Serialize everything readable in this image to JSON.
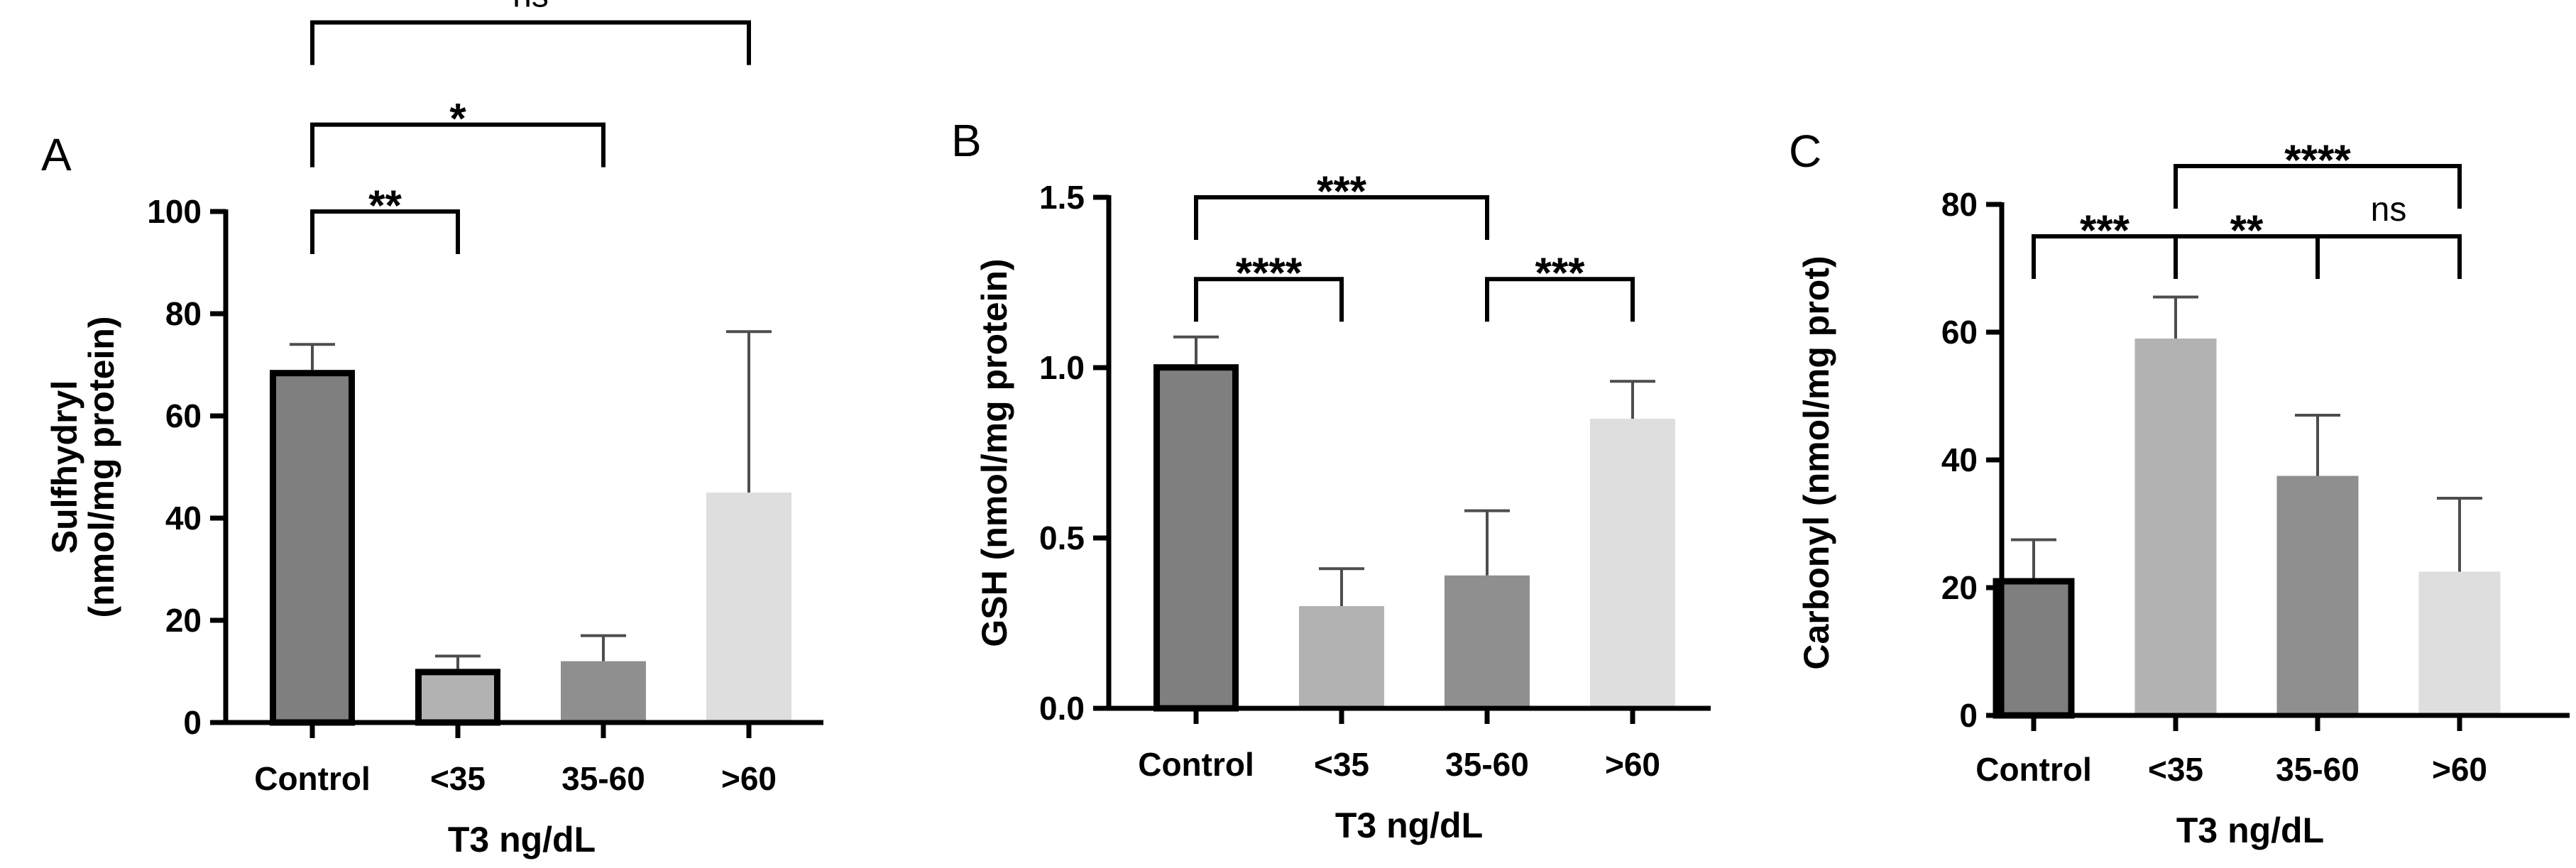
{
  "chart_data": [
    {
      "type": "bar",
      "panel": "A",
      "categories": [
        "Control",
        "<35",
        "35-60",
        ">60"
      ],
      "values": [
        69,
        10.5,
        12,
        45
      ],
      "errors": [
        5,
        2.5,
        5,
        31.5
      ],
      "colors": [
        "#7f7f7f",
        "#b2b2b2",
        "#8f8f8f",
        "#dedede"
      ],
      "outlined": [
        true,
        true,
        false,
        false
      ],
      "ylabel_lines": [
        "Sulfhydryl",
        "(nmol/mg protein)"
      ],
      "xlabel": "T3 ng/dL",
      "ylim": [
        0,
        100
      ],
      "yticks": [
        0,
        20,
        40,
        60,
        80,
        100
      ],
      "ytick_labels": [
        "0",
        "20",
        "40",
        "60",
        "80",
        "100"
      ],
      "significance": [
        {
          "from": 0,
          "to": 1,
          "label": "**",
          "level": 100
        },
        {
          "from": 0,
          "to": 2,
          "label": "*",
          "level": 117
        },
        {
          "from": 0,
          "to": 3,
          "label": "ns",
          "level": 137
        }
      ]
    },
    {
      "type": "bar",
      "panel": "B",
      "categories": [
        "Control",
        "<35",
        "35-60",
        ">60"
      ],
      "values": [
        1.01,
        0.3,
        0.39,
        0.85
      ],
      "errors": [
        0.08,
        0.11,
        0.19,
        0.11
      ],
      "colors": [
        "#7f7f7f",
        "#b2b2b2",
        "#8f8f8f",
        "#dedede"
      ],
      "outlined": [
        true,
        false,
        false,
        false
      ],
      "ylabel_lines": [
        "GSH (nmol/mg protein)"
      ],
      "xlabel": "T3 ng/dL",
      "ylim": [
        0,
        1.5
      ],
      "yticks": [
        0,
        0.5,
        1.0,
        1.5
      ],
      "ytick_labels": [
        "0.0",
        "0.5",
        "1.0",
        "1.5"
      ],
      "significance": [
        {
          "from": 0,
          "to": 1,
          "label": "****",
          "level": 1.26
        },
        {
          "from": 2,
          "to": 3,
          "label": "***",
          "level": 1.26
        },
        {
          "from": 0,
          "to": 2,
          "label": "***",
          "level": 1.5
        }
      ]
    },
    {
      "type": "bar",
      "panel": "C",
      "categories": [
        "Control",
        "<35",
        "35-60",
        ">60"
      ],
      "values": [
        21.5,
        59,
        37.5,
        22.5
      ],
      "errors": [
        6,
        6.5,
        9.5,
        11.5
      ],
      "colors": [
        "#7f7f7f",
        "#b2b2b2",
        "#8f8f8f",
        "#dedede"
      ],
      "outlined": [
        true,
        false,
        false,
        false
      ],
      "ylabel_lines": [
        "Carbonyl (nmol/mg prot)"
      ],
      "xlabel": "T3 ng/dL",
      "ylim": [
        0,
        80
      ],
      "yticks": [
        0,
        20,
        40,
        60,
        80
      ],
      "ytick_labels": [
        "0",
        "20",
        "40",
        "60",
        "80"
      ],
      "significance": [
        {
          "from": 0,
          "to": 1,
          "label": "***",
          "level": 75
        },
        {
          "from": 1,
          "to": 2,
          "label": "**",
          "level": 75
        },
        {
          "from": 2,
          "to": 3,
          "label": "ns",
          "level": 75
        },
        {
          "from": 1,
          "to": 3,
          "label": "****",
          "level": 86
        }
      ]
    }
  ]
}
